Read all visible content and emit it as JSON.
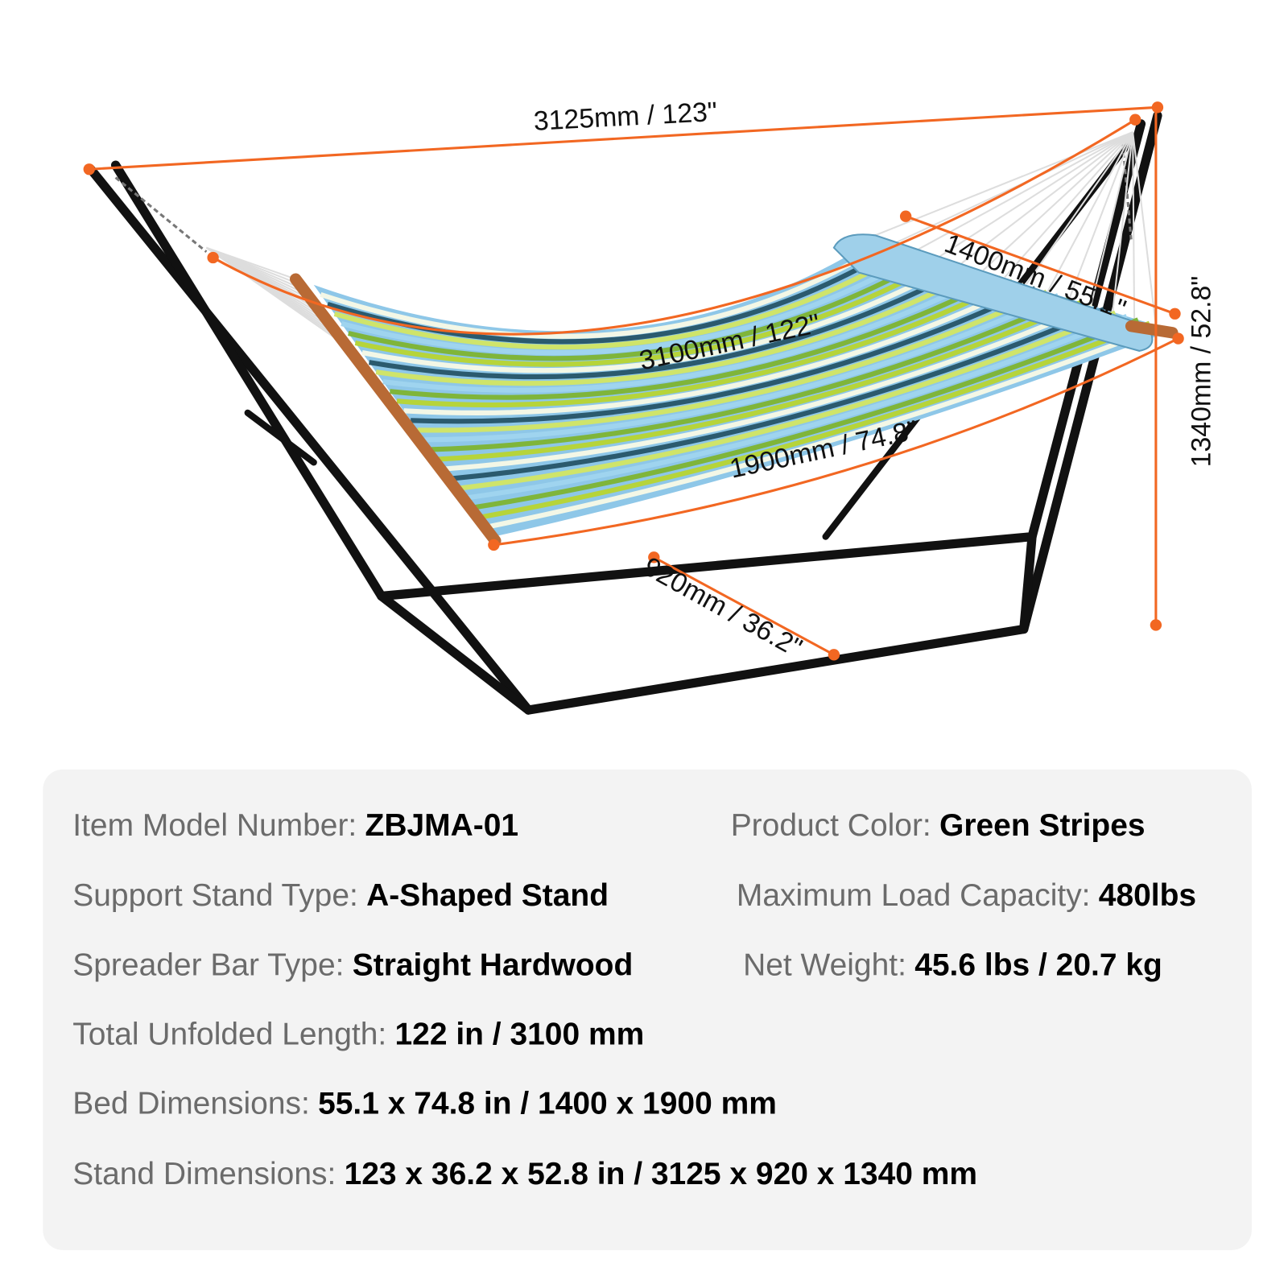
{
  "dimensions": {
    "total_length": "3125mm / 123\"",
    "unfolded_length": "3100mm / 122\"",
    "bed_width": "1400mm / 55.1\"",
    "bed_length": "1900mm / 74.8\"",
    "stand_depth": "920mm / 36.2\"",
    "height": "1340mm / 52.8\""
  },
  "specs": [
    {
      "label": "Item Model Number:",
      "value": "ZBJMA-01"
    },
    {
      "label": "Product Color:",
      "value": "Green Stripes"
    },
    {
      "label": "Support Stand Type:",
      "value": "A-Shaped Stand"
    },
    {
      "label": "Maximum Load Capacity:",
      "value": "480lbs"
    },
    {
      "label": "Spreader Bar Type:",
      "value": "Straight Hardwood"
    },
    {
      "label": "Net Weight:",
      "value": "45.6 lbs / 20.7 kg"
    },
    {
      "label": "Total Unfolded Length:",
      "value": "122 in / 3100 mm"
    },
    {
      "label": "Bed Dimensions:",
      "value": "55.1 x 74.8 in / 1400 x 1900 mm"
    },
    {
      "label": "Stand Dimensions:",
      "value": "123 x 36.2 x 52.8 in / 3125 x 920 x 1340 mm"
    }
  ]
}
